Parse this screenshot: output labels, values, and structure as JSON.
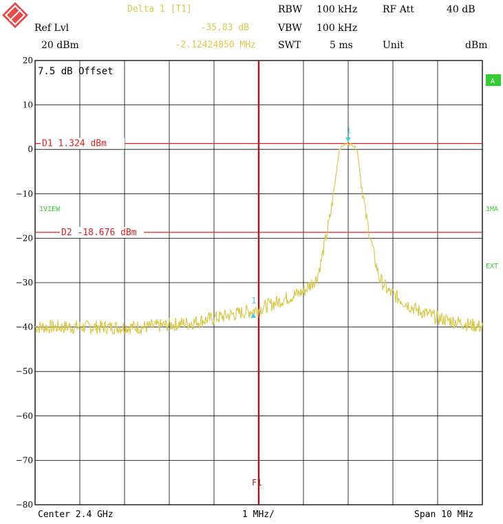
{
  "header": {
    "marker_title": "Delta 1 [T1]",
    "ref_lvl_label": "Ref Lvl",
    "ref_lvl_value": "20 dBm",
    "marker_level": "-35.83 dB",
    "marker_freq": "-2.12424850 MHz",
    "rbw_label": "RBW",
    "rbw_value": "100 kHz",
    "vbw_label": "VBW",
    "vbw_value": "100 kHz",
    "swt_label": "SWT",
    "swt_value": "5 ms",
    "rf_att_label": "RF Att",
    "rf_att_value": "40 dB",
    "unit_label": "Unit",
    "unit_value": "dBm"
  },
  "plot_labels": {
    "offset": "7.5 dB Offset",
    "trace_flag": "A",
    "view": "1VIEW",
    "max": "1MA",
    "ext": "EXT",
    "marker_1": "1",
    "f1": "F1"
  },
  "footer": {
    "center": "Center 2.4 GHz",
    "div": "1 MHz/",
    "span": "Span 10 MHz"
  },
  "colors": {
    "trace": "#d9c94c",
    "grid": "#000000",
    "limit_line": "#e02020",
    "freq_line": "#a01818",
    "marker": "#40d0e0",
    "flag_green": "#33cc33"
  },
  "chart_data": {
    "type": "line",
    "xlim": [
      -5,
      5
    ],
    "x_unit": "MHz offset from 2.4 GHz",
    "ylim": [
      -80,
      20
    ],
    "y_ticks": [
      20,
      10,
      0,
      -10,
      -20,
      -30,
      -40,
      -50,
      -60,
      -70,
      -80
    ],
    "grid": true,
    "series": [
      {
        "points": [
          [
            -5.0,
            -40
          ],
          [
            -4.5,
            -40
          ],
          [
            -4.0,
            -40
          ],
          [
            -3.5,
            -40
          ],
          [
            -3.0,
            -40
          ],
          [
            -2.5,
            -40
          ],
          [
            -2.0,
            -39.5
          ],
          [
            -1.5,
            -39
          ],
          [
            -1.0,
            -38
          ],
          [
            -0.5,
            -37
          ],
          [
            0.0,
            -36
          ],
          [
            0.5,
            -34
          ],
          [
            1.0,
            -32
          ],
          [
            1.3,
            -29
          ],
          [
            1.4,
            -25
          ],
          [
            1.5,
            -20
          ],
          [
            1.6,
            -15
          ],
          [
            1.7,
            -8
          ],
          [
            1.8,
            0
          ],
          [
            1.9,
            1
          ],
          [
            2.0,
            1.3
          ],
          [
            2.1,
            1
          ],
          [
            2.2,
            0
          ],
          [
            2.3,
            -8
          ],
          [
            2.4,
            -15
          ],
          [
            2.5,
            -20
          ],
          [
            2.6,
            -25
          ],
          [
            2.7,
            -29
          ],
          [
            2.9,
            -32
          ],
          [
            3.2,
            -34
          ],
          [
            3.5,
            -36
          ],
          [
            4.0,
            -38
          ],
          [
            4.5,
            -39
          ],
          [
            5.0,
            -40
          ]
        ]
      }
    ],
    "display_lines": [
      {
        "label": "D1 1.324 dBm",
        "y": 1.324
      },
      {
        "label": "D2 -18.676 dBm",
        "y": -18.676
      }
    ],
    "frequency_line": {
      "label": "F1",
      "x": 0.0
    },
    "markers": [
      {
        "label": "1",
        "x": 2.0,
        "y": 1.324
      },
      {
        "label": "1",
        "x": -0.12,
        "y": -36.5
      }
    ]
  }
}
